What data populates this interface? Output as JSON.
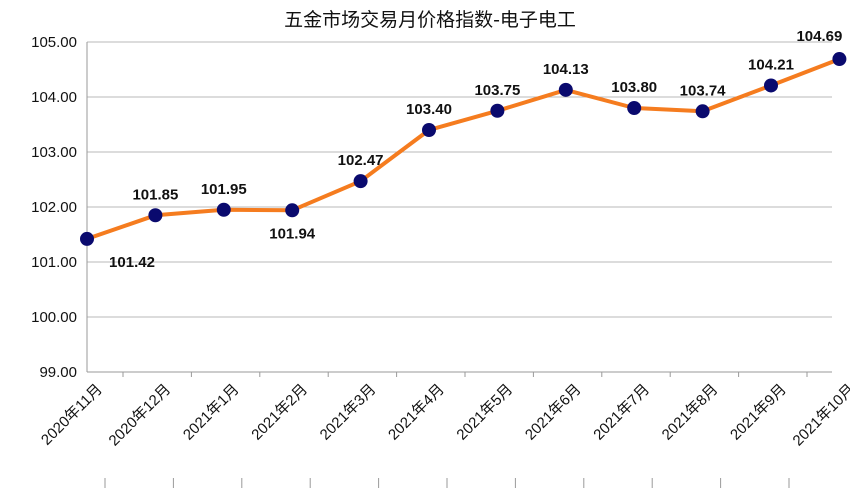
{
  "chart_data": {
    "type": "line",
    "title": "五金市场交易月价格指数-电子电工",
    "xlabel": "",
    "ylabel": "",
    "categories": [
      "2020年11月",
      "2020年12月",
      "2021年1月",
      "2021年2月",
      "2021年3月",
      "2021年4月",
      "2021年5月",
      "2021年6月",
      "2021年7月",
      "2021年8月",
      "2021年9月",
      "2021年10月"
    ],
    "series": [
      {
        "values": [
          101.42,
          101.85,
          101.95,
          101.94,
          102.47,
          103.4,
          103.75,
          104.13,
          103.8,
          103.74,
          104.21,
          104.69
        ]
      }
    ],
    "data_labels": [
      "101.42",
      "101.85",
      "101.95",
      "101.94",
      "102.47",
      "103.40",
      "103.75",
      "104.13",
      "103.80",
      "103.74",
      "104.21",
      "104.69"
    ],
    "yticks": [
      "99.00",
      "100.00",
      "101.00",
      "102.00",
      "103.00",
      "104.00",
      "105.00"
    ],
    "ylim": [
      99,
      105
    ],
    "grid": true,
    "legend": "none",
    "line_color": "#f57c1f",
    "marker_color": "#0a0a6e"
  }
}
